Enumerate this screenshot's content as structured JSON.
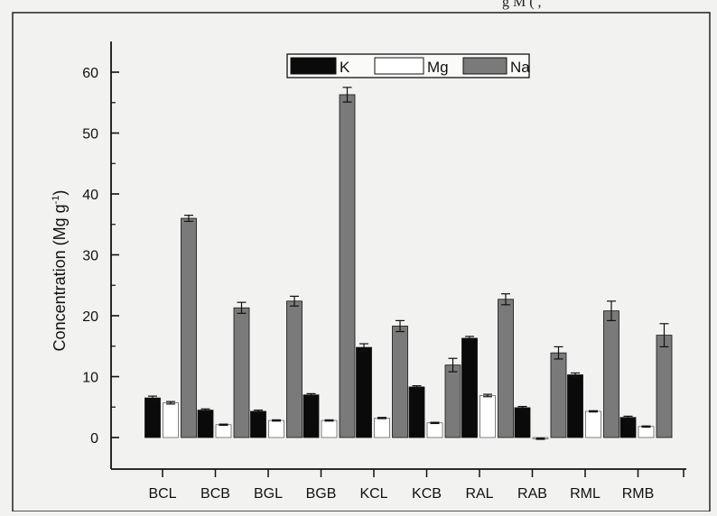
{
  "caption_fragment": "g M    (      ,",
  "chart_data": {
    "type": "bar",
    "title": "",
    "xlabel": "",
    "ylabel": "Concentration (Mg g-1)",
    "ylabel_main": "Concentration (Mg g",
    "ylabel_sup": "-1",
    "ylabel_close": ")",
    "ylim": [
      -5,
      65
    ],
    "yticks": [
      0,
      10,
      20,
      30,
      40,
      50,
      60
    ],
    "categories": [
      "BCL",
      "BCB",
      "BGL",
      "BGB",
      "KCL",
      "KCB",
      "RAL",
      "RAB",
      "RML",
      "RMB"
    ],
    "series": [
      {
        "name": "K",
        "color": "#0a0a0a",
        "values": [
          6.5,
          4.5,
          4.3,
          7.0,
          14.8,
          8.3,
          16.3,
          4.9,
          10.3,
          3.3
        ],
        "errors": [
          0.3,
          0.2,
          0.2,
          0.2,
          0.6,
          0.2,
          0.3,
          0.2,
          0.3,
          0.2
        ]
      },
      {
        "name": "Mg",
        "color": "#ffffff",
        "values": [
          5.7,
          2.1,
          2.8,
          2.8,
          3.2,
          2.4,
          6.9,
          -0.2,
          4.3,
          1.8
        ],
        "errors": [
          0.2,
          0.1,
          0.1,
          0.1,
          0.1,
          0.1,
          0.2,
          0.1,
          0.1,
          0.1
        ]
      },
      {
        "name": "Na",
        "color": "#7a7a7a",
        "values": [
          36.0,
          21.3,
          22.4,
          56.3,
          18.3,
          11.9,
          22.7,
          13.9,
          20.8,
          16.8
        ],
        "errors": [
          0.5,
          0.9,
          0.8,
          1.2,
          0.9,
          1.1,
          0.9,
          1.0,
          1.6,
          1.9
        ]
      }
    ],
    "legend_position": "top-center",
    "grid": false
  }
}
